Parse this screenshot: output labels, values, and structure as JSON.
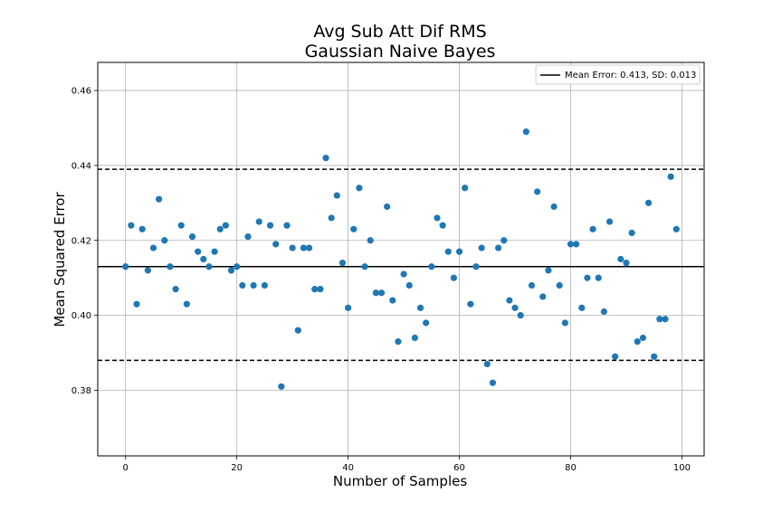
{
  "chart_data": {
    "type": "scatter",
    "title": [
      "Avg Sub Att Dif RMS",
      "Gaussian Naive Bayes"
    ],
    "xlabel": "Number of Samples",
    "ylabel": "Mean Squared Error",
    "xlim": [
      -5,
      104
    ],
    "ylim": [
      0.3625,
      0.4675
    ],
    "xticks": [
      0,
      20,
      40,
      60,
      80,
      100
    ],
    "yticks": [
      0.38,
      0.4,
      0.42,
      0.44,
      0.46
    ],
    "ytick_labels": [
      "0.38",
      "0.40",
      "0.42",
      "0.44",
      "0.46"
    ],
    "grid": true,
    "legend": {
      "placement": "top-right",
      "entries": [
        "Mean Error: 0.413, SD: 0.013"
      ]
    },
    "reference_lines": {
      "mean": 0.413,
      "upper": 0.439,
      "lower": 0.388
    },
    "colors": {
      "points": "#1f77b4",
      "mean_line": "#000000",
      "bound_lines": "#000000",
      "grid": "#b0b0b0"
    },
    "series": [
      {
        "x": [
          0,
          1,
          2,
          3,
          4,
          5,
          6,
          7,
          8,
          9,
          10,
          11,
          12,
          13,
          14,
          15,
          16,
          17,
          18,
          19,
          20,
          21,
          22,
          23,
          24,
          25,
          26,
          27,
          28,
          29,
          30,
          31,
          32,
          33,
          34,
          35,
          36,
          37,
          38,
          39,
          40,
          41,
          42,
          43,
          44,
          45,
          46,
          47,
          48,
          49,
          50,
          51,
          52,
          53,
          54,
          55,
          56,
          57,
          58,
          59,
          60,
          61,
          62,
          63,
          64,
          65,
          66,
          67,
          68,
          69,
          70,
          71,
          72,
          73,
          74,
          75,
          76,
          77,
          78,
          79,
          80,
          81,
          82,
          83,
          84,
          85,
          86,
          87,
          88,
          89,
          90,
          91,
          92,
          93,
          94,
          95,
          96,
          97,
          98,
          99
        ],
        "y": [
          0.413,
          0.424,
          0.403,
          0.423,
          0.412,
          0.418,
          0.431,
          0.42,
          0.413,
          0.407,
          0.424,
          0.403,
          0.421,
          0.417,
          0.415,
          0.413,
          0.417,
          0.423,
          0.424,
          0.412,
          0.413,
          0.408,
          0.421,
          0.408,
          0.425,
          0.408,
          0.424,
          0.419,
          0.381,
          0.424,
          0.418,
          0.396,
          0.418,
          0.418,
          0.407,
          0.407,
          0.442,
          0.426,
          0.432,
          0.414,
          0.402,
          0.423,
          0.434,
          0.413,
          0.42,
          0.406,
          0.406,
          0.429,
          0.404,
          0.393,
          0.411,
          0.408,
          0.394,
          0.402,
          0.398,
          0.413,
          0.426,
          0.424,
          0.417,
          0.41,
          0.417,
          0.434,
          0.403,
          0.413,
          0.418,
          0.387,
          0.382,
          0.418,
          0.42,
          0.404,
          0.402,
          0.4,
          0.449,
          0.408,
          0.433,
          0.405,
          0.412,
          0.429,
          0.408,
          0.398,
          0.419,
          0.419,
          0.402,
          0.41,
          0.423,
          0.41,
          0.401,
          0.425,
          0.389,
          0.415,
          0.414,
          0.422,
          0.393,
          0.394,
          0.43,
          0.389,
          0.399,
          0.399,
          0.437,
          0.423
        ]
      }
    ]
  }
}
